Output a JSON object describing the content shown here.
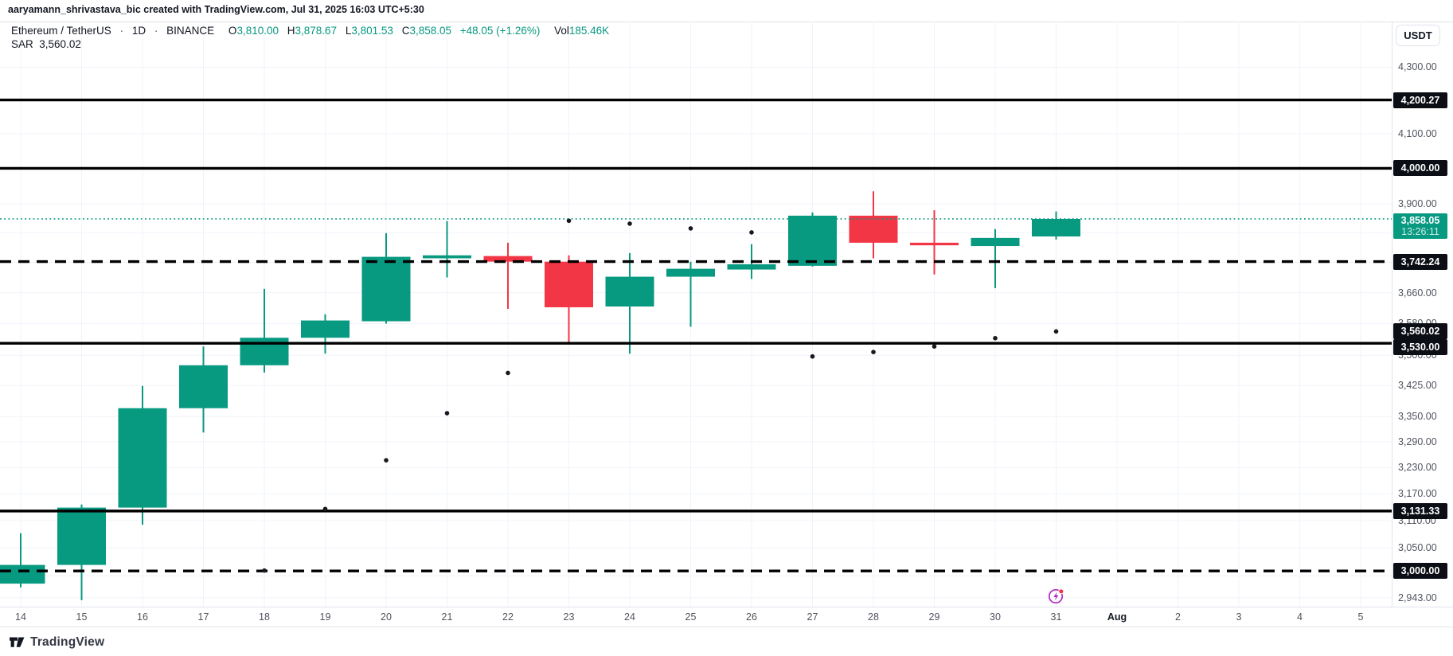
{
  "attribution": "aaryamann_shrivastava_bic created with TradingView.com, Jul 31, 2025 16:03 UTC+5:30",
  "header": {
    "symbol": "Ethereum / TetherUS",
    "separator": "·",
    "interval": "1D",
    "exchange": "BINANCE",
    "ohlc": [
      {
        "label": "O",
        "value": "3,810.00"
      },
      {
        "label": "H",
        "value": "3,878.67"
      },
      {
        "label": "L",
        "value": "3,801.53"
      },
      {
        "label": "C",
        "value": "3,858.05"
      }
    ],
    "change": "+48.05 (+1.26%)",
    "volume_label": "Vol",
    "volume_value": "185.46K",
    "indicator": {
      "name": "SAR",
      "value": "3,560.02"
    }
  },
  "price_axis": {
    "currency_button": "USDT"
  },
  "footer": {
    "logo_text": "TradingView"
  },
  "chart_data": {
    "type": "candlestick",
    "title": "Ethereum / TetherUS 1D BINANCE",
    "scale": "log",
    "ylim": [
      2920,
      4380
    ],
    "grid": true,
    "up_color": "#089981",
    "down_color": "#f23645",
    "sar_dot_color": "#17191e",
    "level_line_color": "#000000",
    "current_price_line_color": "#089981",
    "x_labels": [
      "14",
      "15",
      "16",
      "17",
      "18",
      "19",
      "20",
      "21",
      "22",
      "23",
      "24",
      "25",
      "26",
      "27",
      "28",
      "29",
      "30",
      "31",
      "Aug",
      "2",
      "3",
      "4",
      "5"
    ],
    "candles": [
      {
        "date": "Jul 14",
        "open": 2973,
        "high": 3082,
        "low": 2965,
        "close": 3013
      },
      {
        "date": "Jul 15",
        "open": 3013,
        "high": 3146,
        "low": 2938,
        "close": 3139
      },
      {
        "date": "Jul 16",
        "open": 3139,
        "high": 3424,
        "low": 3101,
        "close": 3370
      },
      {
        "date": "Jul 17",
        "open": 3370,
        "high": 3522,
        "low": 3312,
        "close": 3475
      },
      {
        "date": "Jul 18",
        "open": 3475,
        "high": 3670,
        "low": 3457,
        "close": 3544
      },
      {
        "date": "Jul 19",
        "open": 3544,
        "high": 3604,
        "low": 3504,
        "close": 3588
      },
      {
        "date": "Jul 20",
        "open": 3586,
        "high": 3819,
        "low": 3580,
        "close": 3755
      },
      {
        "date": "Jul 21",
        "open": 3751,
        "high": 3852,
        "low": 3700,
        "close": 3759
      },
      {
        "date": "Jul 22",
        "open": 3757,
        "high": 3793,
        "low": 3618,
        "close": 3742
      },
      {
        "date": "Jul 23",
        "open": 3742,
        "high": 3759,
        "low": 3530,
        "close": 3622
      },
      {
        "date": "Jul 24",
        "open": 3624,
        "high": 3765,
        "low": 3504,
        "close": 3702
      },
      {
        "date": "Jul 25",
        "open": 3702,
        "high": 3742,
        "low": 3572,
        "close": 3723
      },
      {
        "date": "Jul 26",
        "open": 3721,
        "high": 3789,
        "low": 3696,
        "close": 3735
      },
      {
        "date": "Jul 27",
        "open": 3731,
        "high": 3876,
        "low": 3729,
        "close": 3867
      },
      {
        "date": "Jul 28",
        "open": 3867,
        "high": 3935,
        "low": 3751,
        "close": 3793
      },
      {
        "date": "Jul 29",
        "open": 3793,
        "high": 3882,
        "low": 3708,
        "close": 3786
      },
      {
        "date": "Jul 30",
        "open": 3784,
        "high": 3830,
        "low": 3672,
        "close": 3806
      },
      {
        "date": "Jul 31",
        "open": 3810.0,
        "high": 3878.67,
        "low": 3801.53,
        "close": 3858.05
      }
    ],
    "sar_dots": [
      {
        "x_index": 4,
        "value": 3001
      },
      {
        "x_index": 5,
        "value": 3136
      },
      {
        "x_index": 6,
        "value": 3247
      },
      {
        "x_index": 7,
        "value": 3358
      },
      {
        "x_index": 8,
        "value": 3456
      },
      {
        "x_index": 9,
        "value": 3853
      },
      {
        "x_index": 10,
        "value": 3845
      },
      {
        "x_index": 11,
        "value": 3832
      },
      {
        "x_index": 12,
        "value": 3821
      },
      {
        "x_index": 13,
        "value": 3497
      },
      {
        "x_index": 14,
        "value": 3508
      },
      {
        "x_index": 15,
        "value": 3522
      },
      {
        "x_index": 16,
        "value": 3543
      },
      {
        "x_index": 17,
        "value": 3560.02
      }
    ],
    "levels": [
      {
        "price": 4200.27,
        "label": "4,200.27",
        "style": "solid",
        "label_offset": 0
      },
      {
        "price": 4000.0,
        "label": "4,000.00",
        "style": "solid",
        "label_offset": 0
      },
      {
        "price": 3742.24,
        "label": "3,742.24",
        "style": "dashed",
        "label_offset": 0
      },
      {
        "price": 3560.02,
        "label": "3,560.02",
        "style": "none",
        "label_offset": 0
      },
      {
        "price": 3530.0,
        "label": "3,530.00",
        "style": "solid",
        "label_offset": 5
      },
      {
        "price": 3131.33,
        "label": "3,131.33",
        "style": "solid",
        "label_offset": 0
      },
      {
        "price": 3000.0,
        "label": "3,000.00",
        "style": "dashed",
        "label_offset": 0
      }
    ],
    "current_price_label": {
      "price": 3858.05,
      "price_text": "3,858.05",
      "countdown": "13:26:11"
    },
    "price_ticks": [
      {
        "label": "4,300.00",
        "value": 4300
      },
      {
        "label": "4,100.00",
        "value": 4100
      },
      {
        "label": "3,900.00",
        "value": 3900
      },
      {
        "label": "3,660.00",
        "value": 3660
      },
      {
        "label": "3,580.00",
        "value": 3580
      },
      {
        "label": "3,500.00",
        "value": 3500
      },
      {
        "label": "3,425.00",
        "value": 3425
      },
      {
        "label": "3,350.00",
        "value": 3350
      },
      {
        "label": "3,290.00",
        "value": 3290
      },
      {
        "label": "3,230.00",
        "value": 3230
      },
      {
        "label": "3,170.00",
        "value": 3170
      },
      {
        "label": "3,110.00",
        "value": 3110
      },
      {
        "label": "3,050.00",
        "value": 3050
      },
      {
        "label": "2,943.00",
        "value": 2943
      }
    ],
    "grid_prices": [
      4300,
      4200,
      4100,
      4000,
      3900,
      3820,
      3740,
      3660,
      3580,
      3500,
      3425,
      3350,
      3290,
      3230,
      3170,
      3110,
      3050,
      2990,
      2943
    ]
  }
}
